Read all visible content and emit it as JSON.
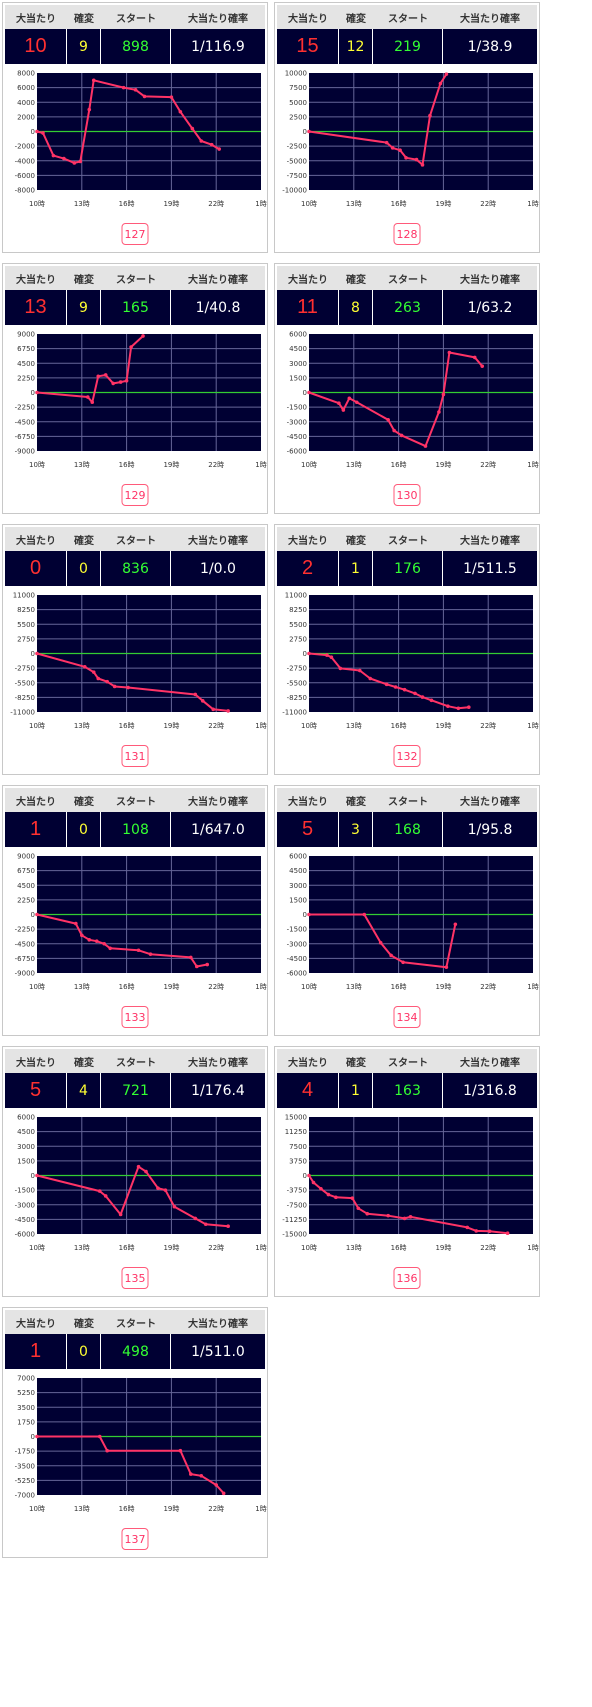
{
  "columns": [
    "大当たり",
    "確変",
    "スタート",
    "大当たり確率"
  ],
  "x_tick_labels": [
    "10時",
    "13時",
    "16時",
    "19時",
    "22時",
    "1時"
  ],
  "colors": {
    "plot_bg": "#000033",
    "line": "#ff3366",
    "zero_line": "#33cc33",
    "grid": "#666699"
  },
  "cards": [
    {
      "id": "127",
      "hits": "10",
      "kakuhen": "9",
      "start": "898",
      "prob": "1/116.9"
    },
    {
      "id": "128",
      "hits": "15",
      "kakuhen": "12",
      "start": "219",
      "prob": "1/38.9"
    },
    {
      "id": "129",
      "hits": "13",
      "kakuhen": "9",
      "start": "165",
      "prob": "1/40.8"
    },
    {
      "id": "130",
      "hits": "11",
      "kakuhen": "8",
      "start": "263",
      "prob": "1/63.2"
    },
    {
      "id": "131",
      "hits": "0",
      "kakuhen": "0",
      "start": "836",
      "prob": "1/0.0"
    },
    {
      "id": "132",
      "hits": "2",
      "kakuhen": "1",
      "start": "176",
      "prob": "1/511.5"
    },
    {
      "id": "133",
      "hits": "1",
      "kakuhen": "0",
      "start": "108",
      "prob": "1/647.0"
    },
    {
      "id": "134",
      "hits": "5",
      "kakuhen": "3",
      "start": "168",
      "prob": "1/95.8"
    },
    {
      "id": "135",
      "hits": "5",
      "kakuhen": "4",
      "start": "721",
      "prob": "1/176.4"
    },
    {
      "id": "136",
      "hits": "4",
      "kakuhen": "1",
      "start": "163",
      "prob": "1/316.8"
    },
    {
      "id": "137",
      "hits": "1",
      "kakuhen": "0",
      "start": "498",
      "prob": "1/511.0"
    }
  ],
  "chart_data": [
    {
      "type": "line",
      "x_range": [
        10,
        25
      ],
      "ylim": [
        -8000,
        8000
      ],
      "y_ticks": [
        "8000",
        "6000",
        "4000",
        "2000",
        "0",
        "-2000",
        "-4000",
        "-6000",
        "-8000"
      ],
      "points": [
        [
          10,
          0
        ],
        [
          10.4,
          -200
        ],
        [
          11.1,
          -3300
        ],
        [
          11.8,
          -3700
        ],
        [
          12.5,
          -4300
        ],
        [
          12.9,
          -4100
        ],
        [
          13.5,
          3000
        ],
        [
          13.8,
          7000
        ],
        [
          15.8,
          6000
        ],
        [
          16.6,
          5700
        ],
        [
          17.2,
          4800
        ],
        [
          19.0,
          4700
        ],
        [
          19.6,
          2700
        ],
        [
          20.4,
          400
        ],
        [
          21.0,
          -1300
        ],
        [
          21.7,
          -1800
        ],
        [
          22.2,
          -2400
        ]
      ]
    },
    {
      "type": "line",
      "x_range": [
        10,
        25
      ],
      "ylim": [
        -10000,
        10000
      ],
      "y_ticks": [
        "10000",
        "7500",
        "5000",
        "2500",
        "0",
        "-2500",
        "-5000",
        "-7500",
        "-10000"
      ],
      "points": [
        [
          10,
          0
        ],
        [
          15.2,
          -1900
        ],
        [
          15.6,
          -2800
        ],
        [
          16.1,
          -3200
        ],
        [
          16.5,
          -4500
        ],
        [
          17.2,
          -4800
        ],
        [
          17.6,
          -5700
        ],
        [
          18.1,
          2700
        ],
        [
          18.8,
          8200
        ],
        [
          19.2,
          9800
        ]
      ]
    },
    {
      "type": "line",
      "x_range": [
        10,
        25
      ],
      "ylim": [
        -9000,
        9000
      ],
      "y_ticks": [
        "9000",
        "6750",
        "4500",
        "2250",
        "0",
        "-2250",
        "-4500",
        "-6750",
        "-9000"
      ],
      "points": [
        [
          10,
          0
        ],
        [
          13.4,
          -700
        ],
        [
          13.7,
          -1500
        ],
        [
          14.1,
          2500
        ],
        [
          14.6,
          2700
        ],
        [
          15.1,
          1400
        ],
        [
          15.6,
          1600
        ],
        [
          16.0,
          1800
        ],
        [
          16.3,
          7000
        ],
        [
          17.1,
          8700
        ]
      ]
    },
    {
      "type": "line",
      "x_range": [
        10,
        25
      ],
      "ylim": [
        -6000,
        6000
      ],
      "y_ticks": [
        "6000",
        "4500",
        "3000",
        "1500",
        "0",
        "-1500",
        "-3000",
        "-4500",
        "-6000"
      ],
      "points": [
        [
          10,
          0
        ],
        [
          12.0,
          -1100
        ],
        [
          12.3,
          -1800
        ],
        [
          12.7,
          -600
        ],
        [
          13.2,
          -1000
        ],
        [
          15.3,
          -2800
        ],
        [
          15.7,
          -3900
        ],
        [
          16.2,
          -4400
        ],
        [
          17.8,
          -5500
        ],
        [
          18.7,
          -2000
        ],
        [
          19.0,
          -200
        ],
        [
          19.4,
          4100
        ],
        [
          21.1,
          3600
        ],
        [
          21.6,
          2700
        ]
      ]
    },
    {
      "type": "line",
      "x_range": [
        10,
        25
      ],
      "ylim": [
        -11000,
        11000
      ],
      "y_ticks": [
        "11000",
        "8250",
        "5500",
        "2750",
        "0",
        "-2750",
        "-5500",
        "-8250",
        "-11000"
      ],
      "points": [
        [
          10,
          0
        ],
        [
          13.2,
          -2500
        ],
        [
          13.8,
          -3500
        ],
        [
          14.1,
          -4700
        ],
        [
          14.7,
          -5300
        ],
        [
          15.2,
          -6200
        ],
        [
          16.1,
          -6400
        ],
        [
          20.6,
          -7700
        ],
        [
          21.1,
          -8900
        ],
        [
          21.8,
          -10500
        ],
        [
          22.8,
          -10800
        ]
      ]
    },
    {
      "type": "line",
      "x_range": [
        10,
        25
      ],
      "ylim": [
        -11000,
        11000
      ],
      "y_ticks": [
        "11000",
        "8250",
        "5500",
        "2750",
        "0",
        "-2750",
        "-5500",
        "-8250",
        "-11000"
      ],
      "points": [
        [
          10,
          0
        ],
        [
          11.2,
          -300
        ],
        [
          11.5,
          -700
        ],
        [
          12.1,
          -2800
        ],
        [
          13.4,
          -3200
        ],
        [
          14.1,
          -4700
        ],
        [
          15.2,
          -5800
        ],
        [
          15.8,
          -6300
        ],
        [
          16.4,
          -6800
        ],
        [
          17.1,
          -7500
        ],
        [
          17.6,
          -8200
        ],
        [
          18.2,
          -8800
        ],
        [
          19.3,
          -9900
        ],
        [
          20.0,
          -10300
        ],
        [
          20.7,
          -10100
        ]
      ]
    },
    {
      "type": "line",
      "x_range": [
        10,
        25
      ],
      "ylim": [
        -9000,
        9000
      ],
      "y_ticks": [
        "9000",
        "6750",
        "4500",
        "2250",
        "0",
        "-2250",
        "-4500",
        "-6750",
        "-9000"
      ],
      "points": [
        [
          10,
          0
        ],
        [
          12.6,
          -1400
        ],
        [
          13.0,
          -3200
        ],
        [
          13.5,
          -3900
        ],
        [
          14.0,
          -4100
        ],
        [
          14.5,
          -4500
        ],
        [
          14.9,
          -5200
        ],
        [
          16.8,
          -5500
        ],
        [
          17.6,
          -6100
        ],
        [
          20.3,
          -6600
        ],
        [
          20.7,
          -8000
        ],
        [
          21.4,
          -7700
        ]
      ]
    },
    {
      "type": "line",
      "x_range": [
        10,
        25
      ],
      "ylim": [
        -6000,
        6000
      ],
      "y_ticks": [
        "6000",
        "4500",
        "3000",
        "1500",
        "0",
        "-1500",
        "-3000",
        "-4500",
        "-6000"
      ],
      "points": [
        [
          10,
          0
        ],
        [
          13.7,
          0
        ],
        [
          14.8,
          -2900
        ],
        [
          15.5,
          -4200
        ],
        [
          16.3,
          -4900
        ],
        [
          19.2,
          -5400
        ],
        [
          19.8,
          -1000
        ]
      ]
    },
    {
      "type": "line",
      "x_range": [
        10,
        25
      ],
      "ylim": [
        -6000,
        6000
      ],
      "y_ticks": [
        "6000",
        "4500",
        "3000",
        "1500",
        "0",
        "-1500",
        "-3000",
        "-4500",
        "-6000"
      ],
      "points": [
        [
          10,
          0
        ],
        [
          14.2,
          -1600
        ],
        [
          14.6,
          -2100
        ],
        [
          15.6,
          -4000
        ],
        [
          16.8,
          900
        ],
        [
          17.3,
          400
        ],
        [
          18.1,
          -1300
        ],
        [
          18.6,
          -1500
        ],
        [
          19.2,
          -3200
        ],
        [
          20.6,
          -4400
        ],
        [
          21.3,
          -5000
        ],
        [
          22.8,
          -5200
        ]
      ]
    },
    {
      "type": "line",
      "x_range": [
        10,
        25
      ],
      "ylim": [
        -15000,
        15000
      ],
      "y_ticks": [
        "15000",
        "11250",
        "7500",
        "3750",
        "0",
        "-3750",
        "-7500",
        "-11250",
        "-15000"
      ],
      "points": [
        [
          10,
          0
        ],
        [
          10.3,
          -1800
        ],
        [
          10.8,
          -3400
        ],
        [
          11.3,
          -4900
        ],
        [
          11.8,
          -5600
        ],
        [
          12.9,
          -5800
        ],
        [
          13.3,
          -8400
        ],
        [
          13.9,
          -9800
        ],
        [
          15.3,
          -10300
        ],
        [
          16.4,
          -11000
        ],
        [
          16.8,
          -10600
        ],
        [
          20.6,
          -13300
        ],
        [
          21.2,
          -14200
        ],
        [
          22.1,
          -14300
        ],
        [
          23.3,
          -14800
        ]
      ]
    },
    {
      "type": "line",
      "x_range": [
        10,
        25
      ],
      "ylim": [
        -7000,
        7000
      ],
      "y_ticks": [
        "7000",
        "5250",
        "3500",
        "1750",
        "0",
        "-1750",
        "-3500",
        "-5250",
        "-7000"
      ],
      "points": [
        [
          10,
          0
        ],
        [
          14.2,
          0
        ],
        [
          14.7,
          -1700
        ],
        [
          19.6,
          -1700
        ],
        [
          20.3,
          -4500
        ],
        [
          21.0,
          -4700
        ],
        [
          22.0,
          -5800
        ],
        [
          22.5,
          -6800
        ]
      ]
    }
  ]
}
